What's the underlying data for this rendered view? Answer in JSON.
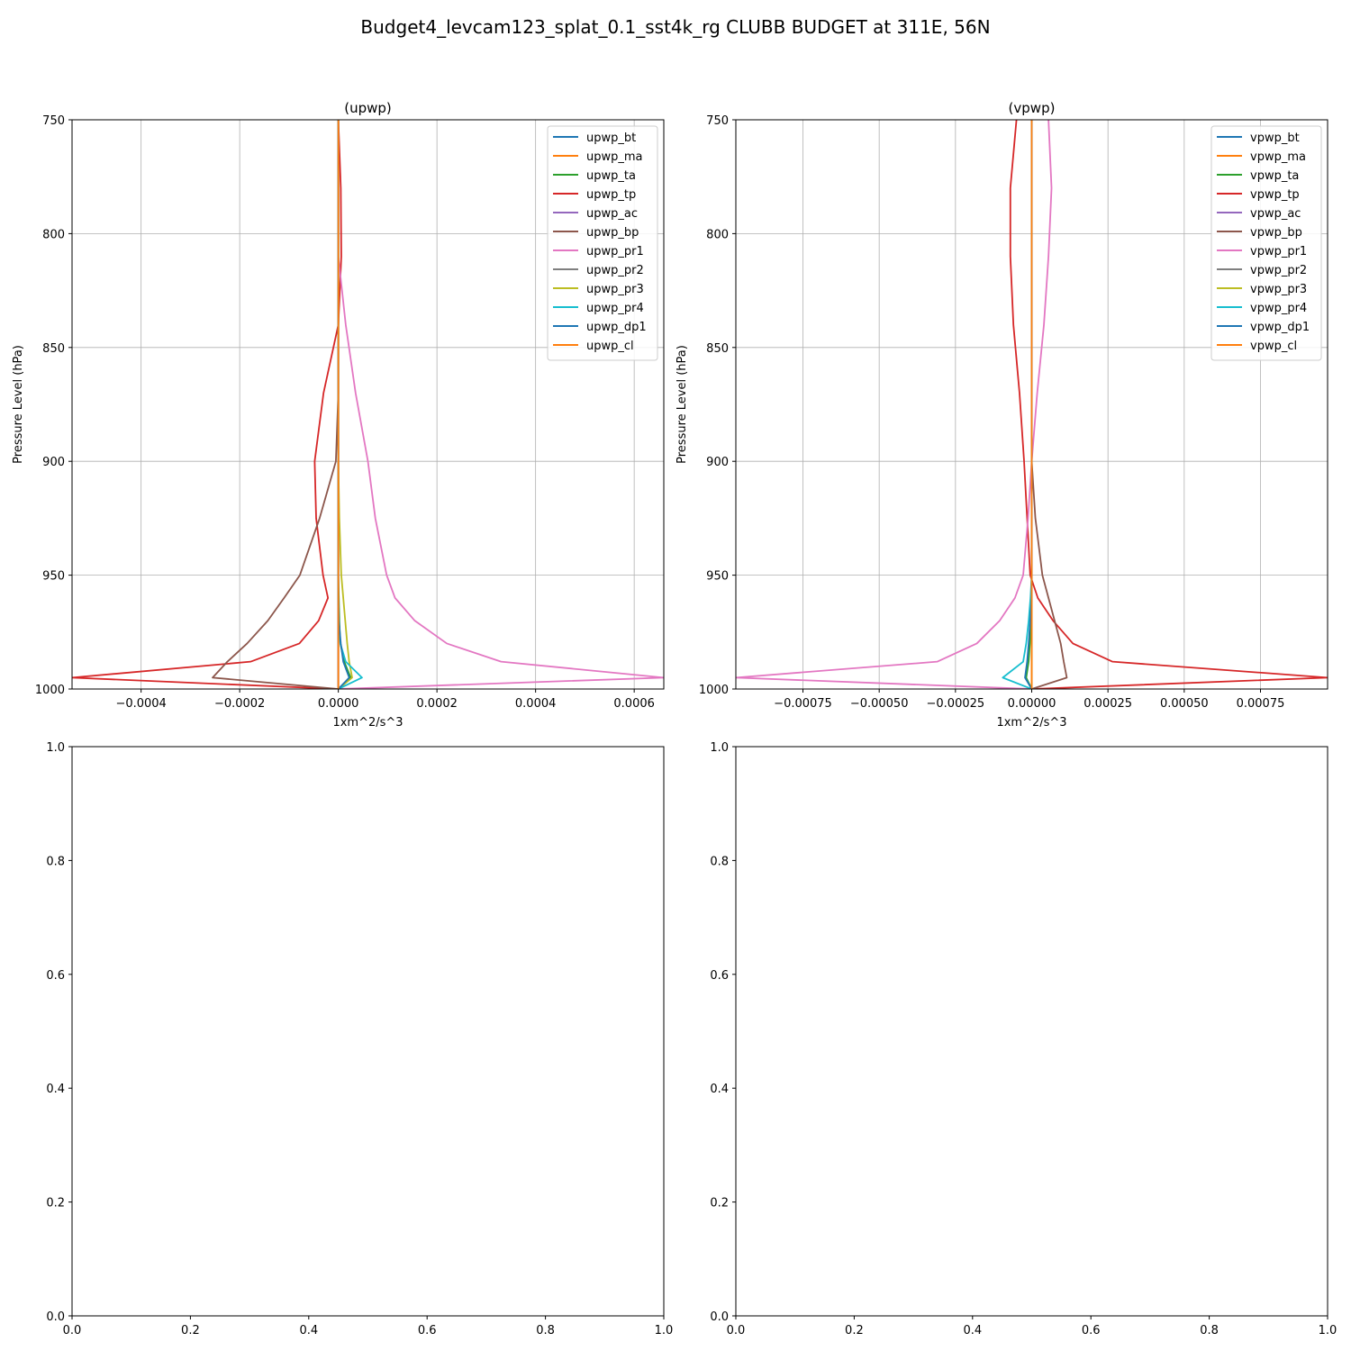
{
  "figure": {
    "title": "Budget4_levcam123_splat_0.1_sst4k_rg CLUBB BUDGET at 311E, 56N"
  },
  "chart_data": [
    {
      "type": "line",
      "title": "(upwp)",
      "xlabel": "1xm^2/s^3",
      "ylabel": "Pressure Level (hPa)",
      "xlim": [
        -0.00054,
        0.00066
      ],
      "ylim": [
        1000,
        750
      ],
      "xticks": [
        -0.0004,
        -0.0002,
        0.0,
        0.0002,
        0.0004,
        0.0006
      ],
      "xtick_labels": [
        "−0.0004",
        "−0.0002",
        "0.0000",
        "0.0002",
        "0.0004",
        "0.0006"
      ],
      "yticks": [
        750,
        800,
        850,
        900,
        950,
        1000
      ],
      "ytick_labels": [
        "750",
        "800",
        "850",
        "900",
        "950",
        "1000"
      ],
      "grid": true,
      "legend_position": "upper-right",
      "levels": [
        750,
        780,
        810,
        840,
        870,
        900,
        925,
        950,
        960,
        970,
        980,
        988,
        995,
        1000
      ],
      "series": [
        {
          "name": "upwp_bt",
          "color": "#1f77b4",
          "values": [
            0,
            0,
            0,
            0,
            0,
            0,
            0,
            0,
            0,
            0,
            0,
            0,
            0,
            0
          ]
        },
        {
          "name": "upwp_ma",
          "color": "#ff7f0e",
          "values": [
            0,
            0,
            0,
            0,
            0,
            0,
            0,
            0,
            0,
            0,
            0,
            0,
            0,
            0
          ]
        },
        {
          "name": "upwp_ta",
          "color": "#2ca02c",
          "values": [
            0,
            0,
            0,
            0,
            0,
            0,
            0,
            0,
            1e-06,
            2e-06,
            4e-06,
            1.2e-05,
            2.5e-05,
            0
          ]
        },
        {
          "name": "upwp_tp",
          "color": "#d62728",
          "values": [
            0,
            5e-06,
            6e-06,
            0,
            -3e-05,
            -4.8e-05,
            -4.5e-05,
            -3.1e-05,
            -2.1e-05,
            -4e-05,
            -7.9e-05,
            -0.000178,
            -0.00054,
            0
          ]
        },
        {
          "name": "upwp_ac",
          "color": "#9467bd",
          "values": [
            0,
            0,
            0,
            0,
            0,
            0,
            0,
            0,
            0,
            0,
            0,
            0,
            0,
            0
          ]
        },
        {
          "name": "upwp_bp",
          "color": "#8c564b",
          "values": [
            0,
            0,
            0,
            0,
            0,
            -5e-06,
            -3.8e-05,
            -7.8e-05,
            -0.00011,
            -0.000143,
            -0.000185,
            -0.000225,
            -0.000255,
            0
          ]
        },
        {
          "name": "upwp_pr1",
          "color": "#e377c2",
          "values": [
            0,
            0,
            0,
            1.5e-05,
            3.5e-05,
            6e-05,
            7.5e-05,
            9.8e-05,
            0.000115,
            0.000155,
            0.00022,
            0.00033,
            0.00066,
            0
          ]
        },
        {
          "name": "upwp_pr2",
          "color": "#7f7f7f",
          "values": [
            0,
            0,
            0,
            0,
            0,
            0,
            0,
            0,
            0,
            0,
            0,
            0,
            0,
            0
          ]
        },
        {
          "name": "upwp_pr3",
          "color": "#bcbd22",
          "values": [
            0,
            0,
            0,
            0,
            0,
            0,
            2e-06,
            6e-06,
            1e-05,
            1.4e-05,
            1.8e-05,
            2.2e-05,
            2.8e-05,
            0
          ]
        },
        {
          "name": "upwp_pr4",
          "color": "#17becf",
          "values": [
            0,
            0,
            0,
            0,
            0,
            0,
            0,
            0,
            0,
            1e-06,
            4e-06,
            1.5e-05,
            4.8e-05,
            0
          ]
        },
        {
          "name": "upwp_dp1",
          "color": "#1f77b4",
          "values": [
            0,
            0,
            0,
            0,
            0,
            0,
            0,
            0,
            0,
            1e-06,
            5e-06,
            1e-05,
            2.2e-05,
            0
          ]
        },
        {
          "name": "upwp_cl",
          "color": "#ff7f0e",
          "values": [
            0,
            0,
            0,
            0,
            0,
            0,
            0,
            0,
            0,
            0,
            0,
            0,
            0,
            0
          ]
        }
      ]
    },
    {
      "type": "line",
      "title": "(vpwp)",
      "xlabel": "1xm^2/s^3",
      "ylabel": "Pressure Level (hPa)",
      "xlim": [
        -0.00097,
        0.00097
      ],
      "ylim": [
        1000,
        750
      ],
      "xticks": [
        -0.00075,
        -0.0005,
        -0.00025,
        0.0,
        0.00025,
        0.0005,
        0.00075
      ],
      "xtick_labels": [
        "−0.00075",
        "−0.00050",
        "−0.00025",
        "0.00000",
        "0.00025",
        "0.00050",
        "0.00075"
      ],
      "yticks": [
        750,
        800,
        850,
        900,
        950,
        1000
      ],
      "ytick_labels": [
        "750",
        "800",
        "850",
        "900",
        "950",
        "1000"
      ],
      "grid": true,
      "legend_position": "upper-right",
      "levels": [
        750,
        780,
        810,
        840,
        870,
        900,
        925,
        950,
        960,
        970,
        980,
        988,
        995,
        1000
      ],
      "series": [
        {
          "name": "vpwp_bt",
          "color": "#1f77b4",
          "values": [
            0,
            0,
            0,
            0,
            0,
            0,
            0,
            0,
            0,
            0,
            0,
            0,
            0,
            0
          ]
        },
        {
          "name": "vpwp_ma",
          "color": "#ff7f0e",
          "values": [
            0,
            0,
            0,
            0,
            0,
            0,
            0,
            0,
            0,
            0,
            0,
            0,
            0,
            0
          ]
        },
        {
          "name": "vpwp_ta",
          "color": "#2ca02c",
          "values": [
            0,
            0,
            0,
            0,
            0,
            0,
            0,
            0,
            -2e-06,
            -4e-06,
            -6e-06,
            -1e-05,
            -1.8e-05,
            0
          ]
        },
        {
          "name": "vpwp_tp",
          "color": "#d62728",
          "values": [
            -5e-05,
            -7e-05,
            -7e-05,
            -6e-05,
            -4e-05,
            -2.5e-05,
            -1.5e-05,
            -5e-06,
            2e-05,
            7e-05,
            0.000135,
            0.000265,
            0.00097,
            0
          ]
        },
        {
          "name": "vpwp_ac",
          "color": "#9467bd",
          "values": [
            0,
            0,
            0,
            0,
            0,
            0,
            0,
            0,
            0,
            0,
            0,
            0,
            0,
            0
          ]
        },
        {
          "name": "vpwp_bp",
          "color": "#8c564b",
          "values": [
            0,
            0,
            0,
            0,
            0,
            0,
            1.2e-05,
            3.5e-05,
            5.5e-05,
            7.5e-05,
            9.5e-05,
            0.000105,
            0.000115,
            0
          ]
        },
        {
          "name": "vpwp_pr1",
          "color": "#e377c2",
          "values": [
            5.5e-05,
            6.5e-05,
            5.5e-05,
            4e-05,
            1.8e-05,
            0,
            -1.2e-05,
            -2.8e-05,
            -5.5e-05,
            -0.000105,
            -0.00018,
            -0.00031,
            -0.00097,
            0
          ]
        },
        {
          "name": "vpwp_pr2",
          "color": "#7f7f7f",
          "values": [
            0,
            0,
            0,
            0,
            0,
            0,
            0,
            0,
            0,
            0,
            0,
            0,
            0,
            0
          ]
        },
        {
          "name": "vpwp_pr3",
          "color": "#bcbd22",
          "values": [
            0,
            0,
            0,
            0,
            0,
            0,
            0,
            0,
            0,
            0,
            0,
            0,
            0,
            0
          ]
        },
        {
          "name": "vpwp_pr4",
          "color": "#17becf",
          "values": [
            0,
            0,
            0,
            0,
            0,
            0,
            0,
            0,
            -4e-06,
            -1e-05,
            -1.8e-05,
            -2.8e-05,
            -9.5e-05,
            0
          ]
        },
        {
          "name": "vpwp_dp1",
          "color": "#1f77b4",
          "values": [
            0,
            0,
            0,
            0,
            0,
            0,
            0,
            0,
            0,
            -5e-06,
            -1e-05,
            -1.5e-05,
            -2.2e-05,
            0
          ]
        },
        {
          "name": "vpwp_cl",
          "color": "#ff7f0e",
          "values": [
            0,
            0,
            0,
            0,
            0,
            0,
            0,
            0,
            0,
            0,
            0,
            0,
            0,
            0
          ]
        }
      ]
    },
    {
      "type": "line",
      "title": "",
      "xlim": [
        0,
        1
      ],
      "ylim": [
        0,
        1
      ],
      "xticks": [
        0.0,
        0.2,
        0.4,
        0.6,
        0.8,
        1.0
      ],
      "xtick_labels": [
        "0.0",
        "0.2",
        "0.4",
        "0.6",
        "0.8",
        "1.0"
      ],
      "yticks": [
        0.0,
        0.2,
        0.4,
        0.6,
        0.8,
        1.0
      ],
      "ytick_labels": [
        "0.0",
        "0.2",
        "0.4",
        "0.6",
        "0.8",
        "1.0"
      ],
      "grid": false,
      "series": []
    },
    {
      "type": "line",
      "title": "",
      "xlim": [
        0,
        1
      ],
      "ylim": [
        0,
        1
      ],
      "xticks": [
        0.0,
        0.2,
        0.4,
        0.6,
        0.8,
        1.0
      ],
      "xtick_labels": [
        "0.0",
        "0.2",
        "0.4",
        "0.6",
        "0.8",
        "1.0"
      ],
      "yticks": [
        0.0,
        0.2,
        0.4,
        0.6,
        0.8,
        1.0
      ],
      "ytick_labels": [
        "0.0",
        "0.2",
        "0.4",
        "0.6",
        "0.8",
        "1.0"
      ],
      "grid": false,
      "series": []
    }
  ]
}
